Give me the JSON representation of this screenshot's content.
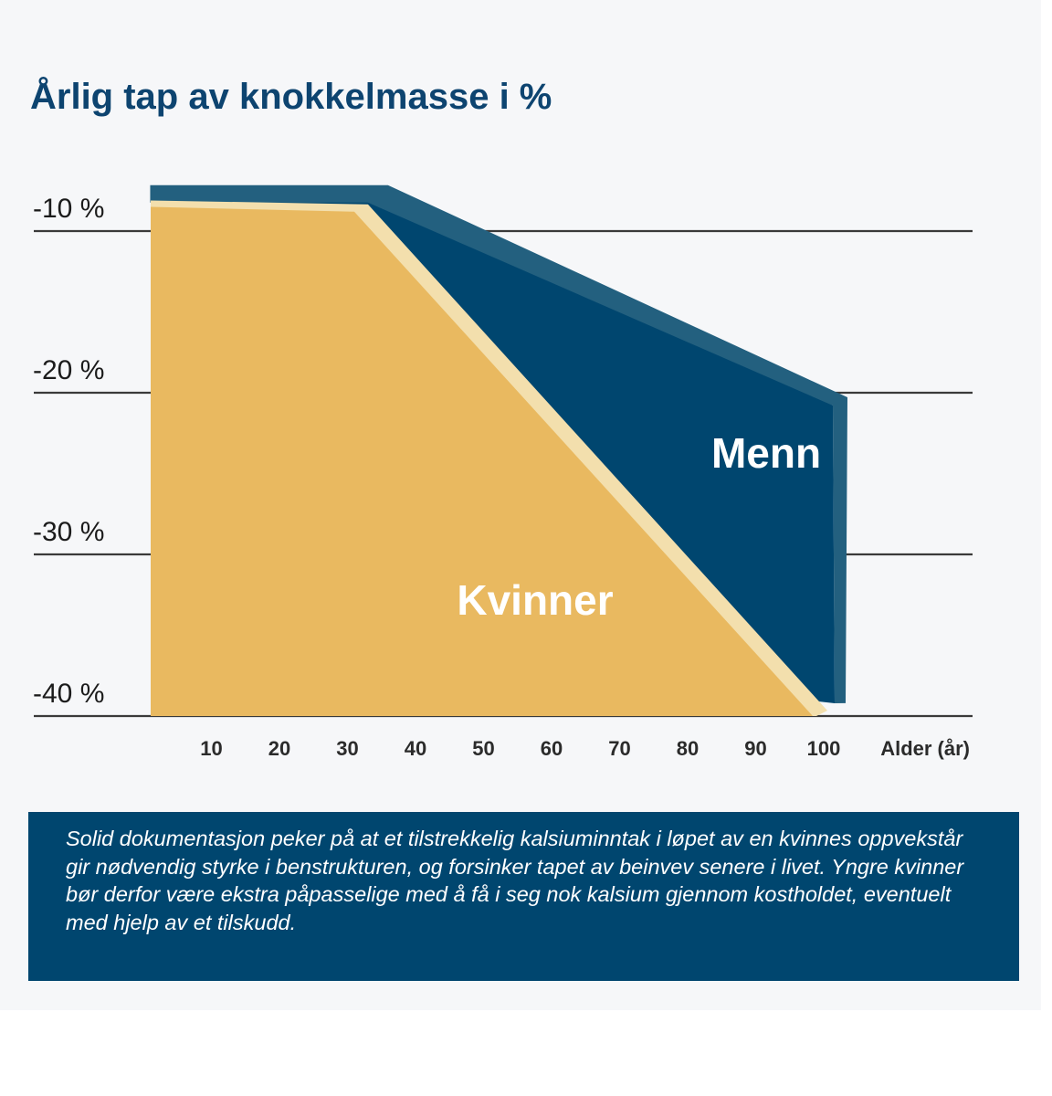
{
  "colors": {
    "background": "#f6f7f9",
    "title": "#0d4470",
    "women_fill": "#e9b960",
    "women_highlight": "#f3dfad",
    "men_fill": "#00466f",
    "men_edge": "#23607f",
    "note_background": "#00466f"
  },
  "chart_data": {
    "type": "area",
    "title": "Årlig tap av knokkelmasse i %",
    "xlabel": "Alder  (år)",
    "ylabel": "",
    "x_ticks": [
      10,
      20,
      30,
      40,
      50,
      60,
      70,
      80,
      90,
      100
    ],
    "y_ticks": [
      -10,
      -20,
      -30,
      -40
    ],
    "y_tick_labels": [
      "-10 %",
      "-20 %",
      "-30 %",
      "-40 %"
    ],
    "grid": "horizontal",
    "series": [
      {
        "name": "Menn",
        "x": [
          1,
          33,
          100
        ],
        "y": [
          -7.5,
          -7.5,
          -40
        ]
      },
      {
        "name": "Kvinner",
        "x": [
          0,
          31,
          100
        ],
        "y": [
          -8.5,
          -8.8,
          -40
        ]
      }
    ],
    "ylim": [
      -40,
      -7
    ],
    "xlim": [
      0,
      110
    ]
  },
  "note": "Solid dokumentasjon peker på at et tilstrekkelig kalsiuminntak i løpet av en kvinnes oppvekstår gir nødvendig styrke i benstrukturen, og forsinker tapet av beinvev senere i livet. Yngre kvinner bør derfor være ekstra påpasselige med å få i seg nok kalsium gjennom kostholdet, eventuelt med hjelp av et tilskudd."
}
